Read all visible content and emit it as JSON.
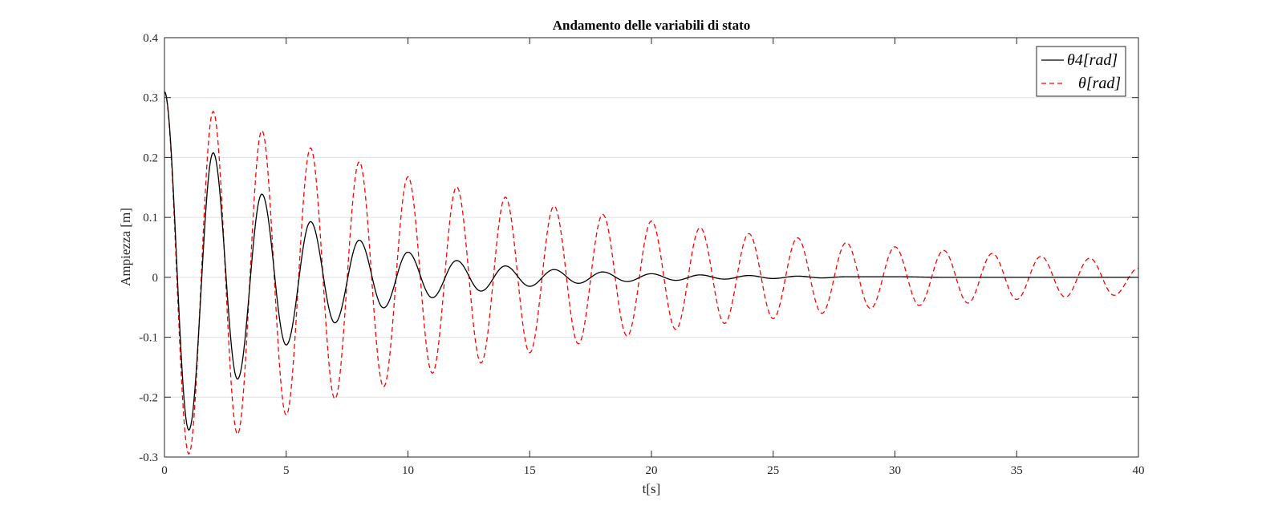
{
  "chart_data": {
    "type": "line",
    "title": "Andamento delle variabili di stato",
    "xlabel": "t[s]",
    "ylabel": "Ampiezza [m]",
    "xlim": [
      0,
      40
    ],
    "ylim": [
      -0.3,
      0.4
    ],
    "xticks": [
      0,
      5,
      10,
      15,
      20,
      25,
      30,
      35,
      40
    ],
    "xtick_labels": [
      "0",
      "5",
      "10",
      "15",
      "20",
      "25",
      "30",
      "35",
      "40"
    ],
    "yticks": [
      -0.3,
      -0.2,
      -0.1,
      0,
      0.1,
      0.2,
      0.3,
      0.4
    ],
    "ytick_labels": [
      "-0.3",
      "-0.2",
      "-0.1",
      "0",
      "0.1",
      "0.2",
      "0.3",
      "0.4"
    ],
    "grid": "horizontal",
    "legend_position": "top-right",
    "series": [
      {
        "name": "θ4[rad]",
        "style": "solid",
        "color": "#000000",
        "x": [
          0,
          1,
          2,
          3,
          4,
          5,
          6,
          7,
          8,
          9,
          10,
          11,
          12,
          13,
          14,
          15,
          16,
          17,
          18,
          19,
          20,
          21,
          22,
          23,
          24,
          25,
          26,
          27,
          28,
          30,
          32,
          36,
          40
        ],
        "y": [
          0.31,
          -0.255,
          0.208,
          -0.17,
          0.139,
          -0.113,
          0.093,
          -0.076,
          0.062,
          -0.051,
          0.042,
          -0.034,
          0.028,
          -0.023,
          0.019,
          -0.015,
          0.013,
          -0.01,
          0.009,
          -0.007,
          0.006,
          -0.005,
          0.004,
          -0.003,
          0.003,
          -0.002,
          0.002,
          -0.001,
          0.001,
          0.001,
          0.0,
          0.0,
          0.0
        ]
      },
      {
        "name": "θ[rad]",
        "style": "dashed",
        "color": "#ff0000",
        "x": [
          0,
          1,
          2,
          3,
          4,
          5,
          6,
          7,
          8,
          9,
          10,
          11,
          12,
          13,
          14,
          15,
          16,
          17,
          18,
          19,
          20,
          21,
          22,
          23,
          24,
          25,
          26,
          27,
          28,
          29,
          30,
          31,
          32,
          33,
          34,
          35,
          36,
          37,
          38,
          39,
          40
        ],
        "y": [
          0.31,
          -0.295,
          0.277,
          -0.262,
          0.245,
          -0.23,
          0.216,
          -0.203,
          0.193,
          -0.183,
          0.168,
          -0.16,
          0.151,
          -0.143,
          0.134,
          -0.126,
          0.119,
          -0.111,
          0.105,
          -0.098,
          0.094,
          -0.087,
          0.083,
          -0.077,
          0.073,
          -0.069,
          0.066,
          -0.06,
          0.058,
          -0.052,
          0.051,
          -0.047,
          0.045,
          -0.043,
          0.04,
          -0.037,
          0.035,
          -0.033,
          0.032,
          -0.03,
          0.015
        ]
      }
    ]
  }
}
